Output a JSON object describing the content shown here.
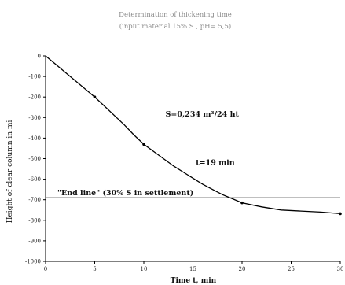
{
  "chart_data": {
    "type": "line",
    "title": "Determination of thickening time",
    "subtitle": "(input material 15% S , pH= 5,5)",
    "xlabel": "Time t, min",
    "ylabel": "Height of clear column in mi",
    "xlim": [
      0,
      30
    ],
    "ylim": [
      -1000,
      0
    ],
    "x_ticks": [
      "0",
      "5",
      "10",
      "15",
      "20",
      "25",
      "30"
    ],
    "y_ticks": [
      "0",
      "-100",
      "-200",
      "-300",
      "-400",
      "-500",
      "-600",
      "-700",
      "-800",
      "-900",
      "-1000"
    ],
    "series": [
      {
        "x": [
          0,
          1,
          2,
          3,
          4,
          5,
          6,
          7,
          8,
          9,
          10,
          11,
          12,
          13,
          14,
          15,
          16,
          17,
          18,
          19,
          20,
          22,
          24,
          26,
          28,
          30
        ],
        "y": [
          0,
          -40,
          -80,
          -120,
          -160,
          -200,
          -245,
          -290,
          -335,
          -385,
          -430,
          -465,
          -500,
          -535,
          -565,
          -595,
          -625,
          -650,
          -675,
          -695,
          -715,
          -735,
          -750,
          -755,
          -760,
          -768
        ],
        "markers_x": [
          5,
          10,
          20,
          30
        ],
        "markers_y": [
          -200,
          -430,
          -715,
          -768
        ],
        "color": "#000000"
      }
    ],
    "reference_line": {
      "y": -690,
      "label": "\"End line\" (30% S in settlement)"
    },
    "annotations": [
      {
        "text": "S=0,234 m³/24 ht",
        "x": 12.2,
        "y": -295
      },
      {
        "text": "t=19 min",
        "x": 15.3,
        "y": -530
      }
    ],
    "grid": false,
    "legend": "none"
  }
}
